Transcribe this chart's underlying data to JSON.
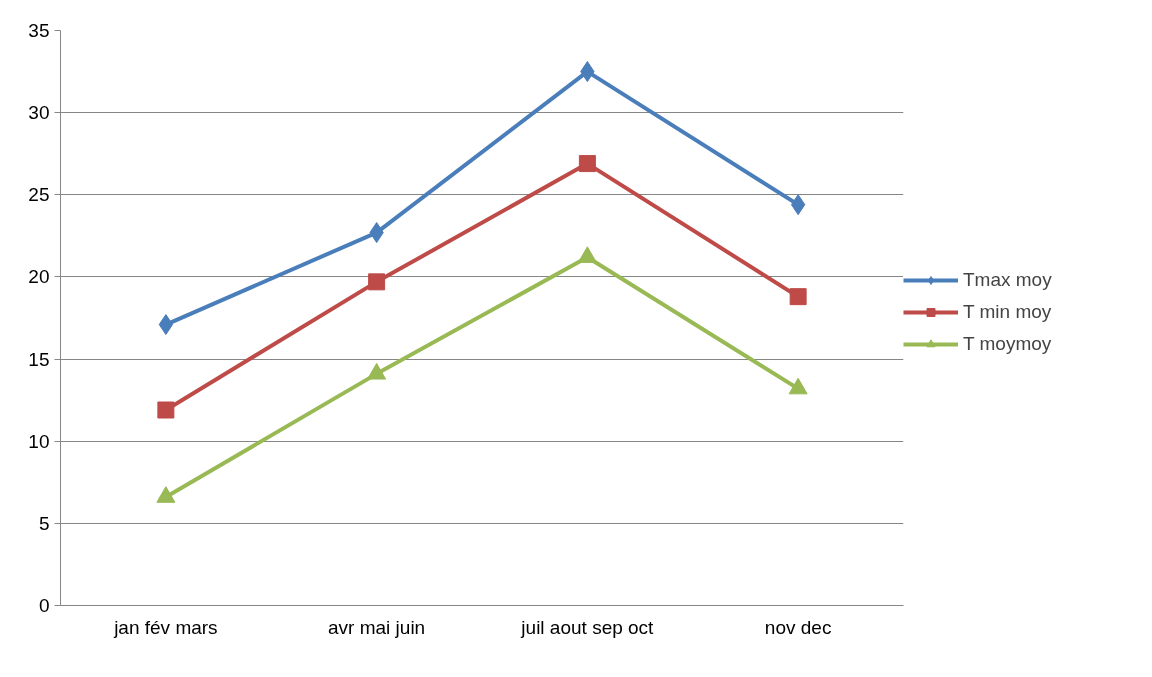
{
  "chart_data": {
    "type": "line",
    "categories": [
      "jan fév mars",
      "avr mai juin",
      "juil aout sep oct",
      "nov dec"
    ],
    "series": [
      {
        "name": "Tmax moy",
        "color": "#4a7ebb",
        "marker": "diamond",
        "values": [
          17.1,
          22.7,
          32.5,
          24.4
        ]
      },
      {
        "name": "T min moy",
        "color": "#be4b48",
        "marker": "square",
        "values": [
          11.9,
          19.7,
          26.9,
          18.8
        ]
      },
      {
        "name": "T moymoy",
        "color": "#98b954",
        "marker": "triangle",
        "values": [
          6.6,
          14.1,
          21.2,
          13.2
        ]
      }
    ],
    "ylim": [
      0,
      35
    ],
    "yticks": [
      0,
      5,
      10,
      15,
      20,
      25,
      30,
      35
    ],
    "grid": "y",
    "legend": "right",
    "line_style": "solid"
  }
}
